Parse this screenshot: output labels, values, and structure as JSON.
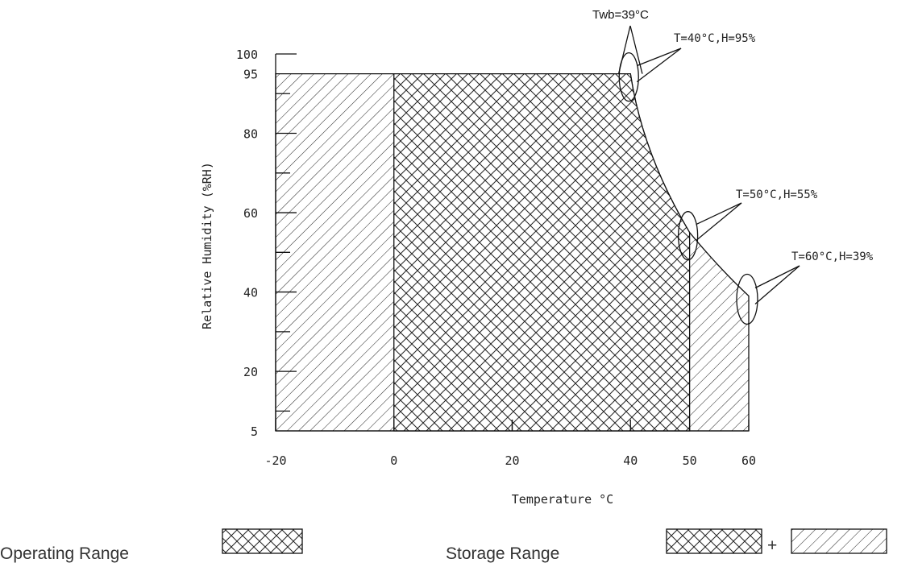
{
  "chart_data": {
    "type": "area",
    "title": "",
    "xlabel": "Temperature °C",
    "ylabel": "Relative Humidity (%RH)",
    "xlim": [
      -20,
      60
    ],
    "ylim": [
      0,
      100
    ],
    "x_ticks": [
      -20,
      0,
      20,
      40,
      50,
      60
    ],
    "y_ticks": [
      5,
      20,
      40,
      60,
      80,
      95,
      100
    ],
    "twb_label": "Twb=39°C",
    "regions": [
      {
        "name": "Operating Range",
        "hatch": "cross",
        "x_range": [
          0,
          50
        ],
        "boundary": [
          [
            0,
            5
          ],
          [
            0,
            95
          ],
          [
            40,
            95
          ],
          [
            50,
            55
          ],
          [
            50,
            5
          ]
        ]
      },
      {
        "name": "Storage Range",
        "hatch": "cross + diagonal",
        "x_range": [
          -20,
          60
        ],
        "boundary": [
          [
            -20,
            5
          ],
          [
            -20,
            95
          ],
          [
            40,
            95
          ],
          [
            50,
            55
          ],
          [
            60,
            39
          ],
          [
            60,
            5
          ]
        ]
      }
    ],
    "annotations": [
      {
        "text": "T=40°C,H=95%",
        "x": 40,
        "y": 95
      },
      {
        "text": "T=50°C,H=55%",
        "x": 50,
        "y": 55
      },
      {
        "text": "T=60°C,H=39%",
        "x": 60,
        "y": 39
      }
    ],
    "legend": {
      "placement": "bottom",
      "items": [
        {
          "label": "Operating Range",
          "symbol": "cross-hatch"
        },
        {
          "label": "Storage Range",
          "symbol": "cross-hatch + diagonal-hatch",
          "joiner": "+"
        }
      ]
    }
  }
}
